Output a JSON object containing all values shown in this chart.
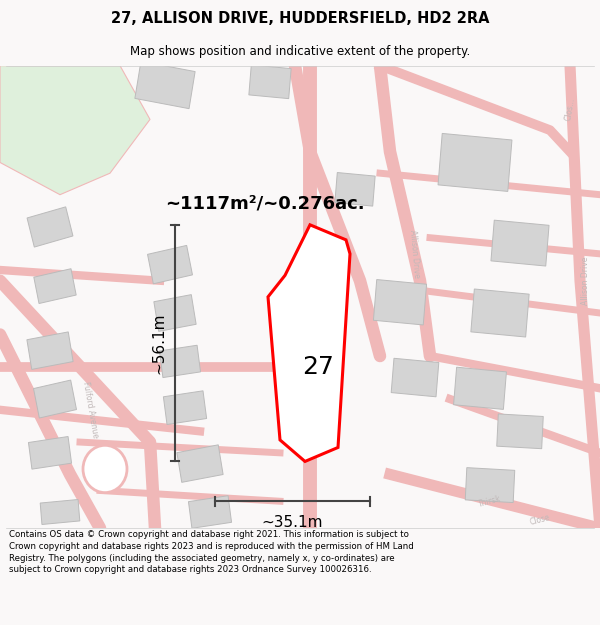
{
  "title_line1": "27, ALLISON DRIVE, HUDDERSFIELD, HD2 2RA",
  "title_line2": "Map shows position and indicative extent of the property.",
  "area_text": "~1117m²/~0.276ac.",
  "label_27": "27",
  "dim_vertical": "~56.1m",
  "dim_horizontal": "~35.1m",
  "footer_text": "Contains OS data © Crown copyright and database right 2021. This information is subject to Crown copyright and database rights 2023 and is reproduced with the permission of HM Land Registry. The polygons (including the associated geometry, namely x, y co-ordinates) are subject to Crown copyright and database rights 2023 Ordnance Survey 100026316.",
  "bg_color": "#faf8f8",
  "map_bg": "#ffffff",
  "road_color": "#f0b8b8",
  "building_color": "#d4d4d4",
  "building_edge": "#bbbbbb",
  "property_color": "red",
  "dim_line_color": "#444444",
  "road_label_color": "#c0b8b8",
  "green_area": "#dff0dc"
}
